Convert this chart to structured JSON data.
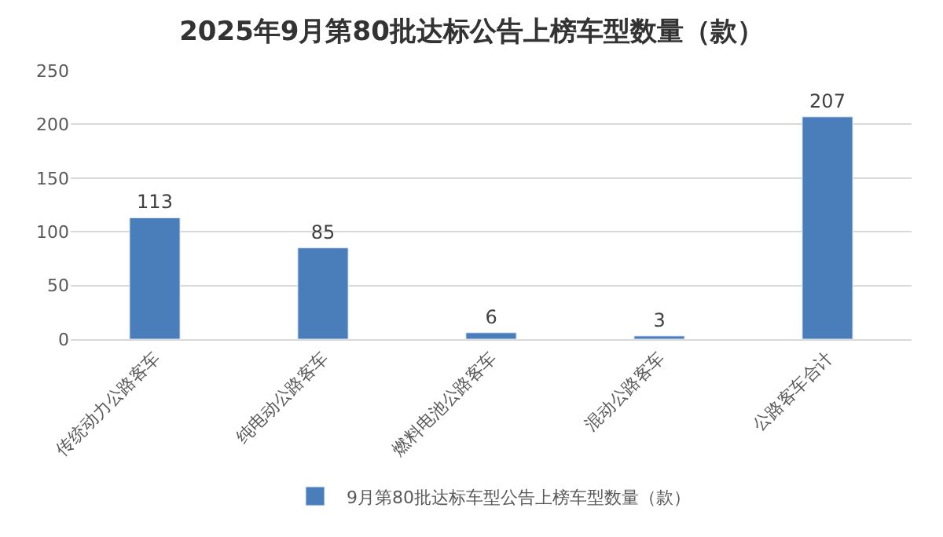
{
  "chart_data": {
    "type": "bar",
    "title": "2025年9月第80批达标公告上榜车型数量（款）",
    "categories": [
      "传统动力公路客车",
      "纯电动公路客车",
      "燃料电池公路客车",
      "混动公路客车",
      "公路客车合计"
    ],
    "series": [
      {
        "name": "9月第80批达标车型公告上榜车型数量（款）",
        "color": "#4a7ebb",
        "values": [
          113,
          85,
          6,
          3,
          207
        ]
      }
    ],
    "ylim": [
      0,
      250
    ],
    "yticks": [
      0,
      50,
      100,
      150,
      200,
      250
    ],
    "grid": "y",
    "legend": "bottom",
    "data_labels": true
  }
}
